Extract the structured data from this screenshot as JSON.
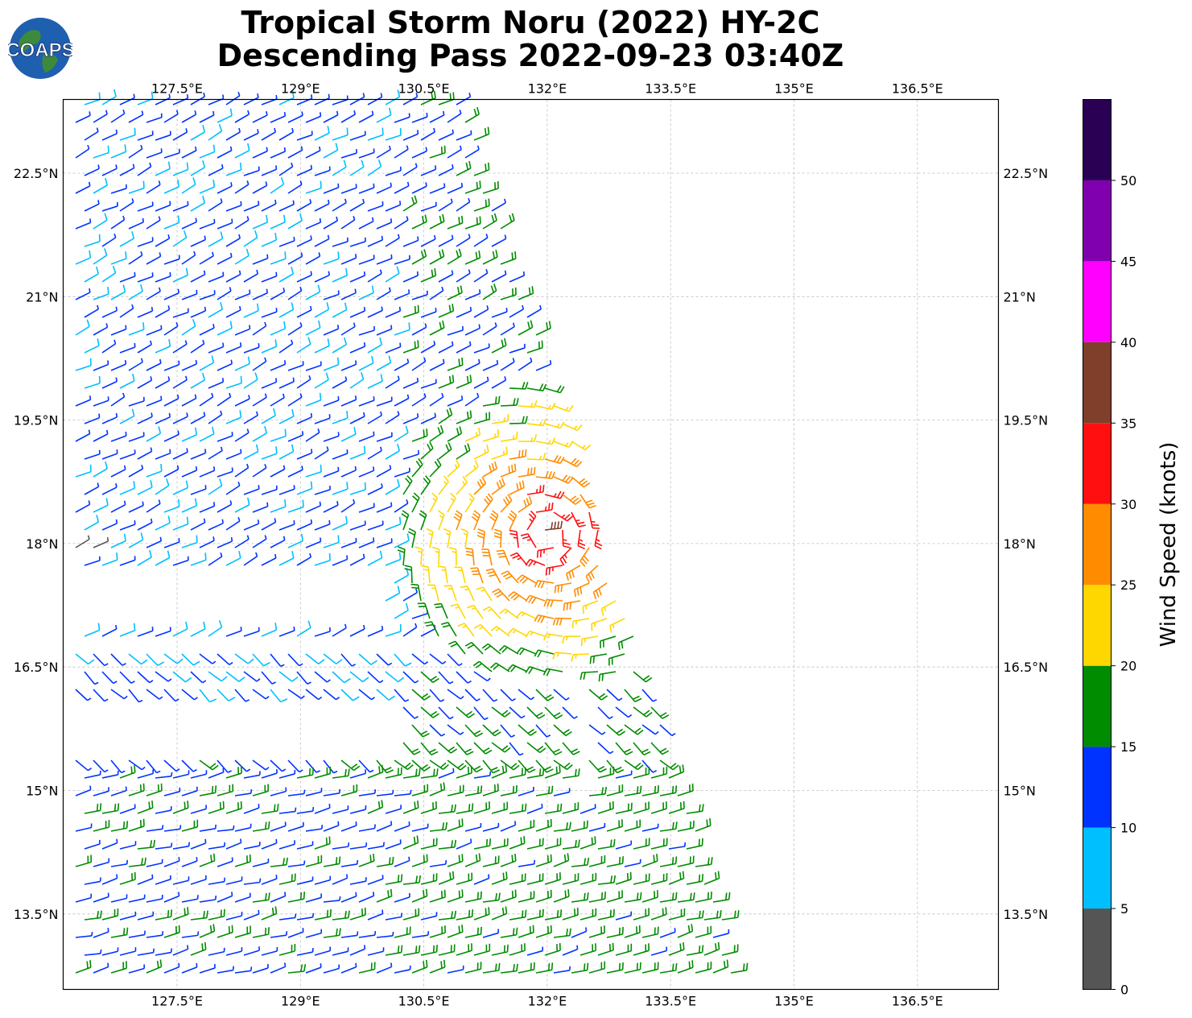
{
  "header": {
    "title_line1": "Tropical Storm Noru (2022) HY-2C",
    "title_line2": "Descending Pass 2022-09-23 03:40Z",
    "logo_text": "COAPS"
  },
  "map": {
    "lon_ticks": [
      "127.5°E",
      "129°E",
      "130.5°E",
      "132°E",
      "133.5°E",
      "135°E",
      "136.5°E"
    ],
    "lat_ticks": [
      "22.5°N",
      "21°N",
      "19.5°N",
      "18°N",
      "16.5°N",
      "15°N",
      "13.5°N"
    ],
    "lon_range": [
      126.1,
      137.5
    ],
    "lat_range": [
      12.6,
      23.4
    ],
    "gridlines": true,
    "storm_center_approx": {
      "lon": 132.0,
      "lat": 18.1
    }
  },
  "colorbar": {
    "label": "Wind Speed (knots)",
    "tick_labels": [
      "0",
      "5",
      "10",
      "15",
      "20",
      "25",
      "30",
      "35",
      "40",
      "45",
      "50"
    ],
    "bins": [
      {
        "min": 0,
        "max": 5,
        "color": "#555555"
      },
      {
        "min": 5,
        "max": 10,
        "color": "#00bfff"
      },
      {
        "min": 10,
        "max": 15,
        "color": "#0033ff"
      },
      {
        "min": 15,
        "max": 20,
        "color": "#008c00"
      },
      {
        "min": 20,
        "max": 25,
        "color": "#ffd700"
      },
      {
        "min": 25,
        "max": 30,
        "color": "#ff8c00"
      },
      {
        "min": 30,
        "max": 35,
        "color": "#ff0f0f"
      },
      {
        "min": 35,
        "max": 40,
        "color": "#7f3f2a"
      },
      {
        "min": 40,
        "max": 45,
        "color": "#ff00ff"
      },
      {
        "min": 45,
        "max": 50,
        "color": "#8000b0"
      },
      {
        "min": 50,
        "max": 55,
        "color": "#2a0055"
      }
    ]
  }
}
